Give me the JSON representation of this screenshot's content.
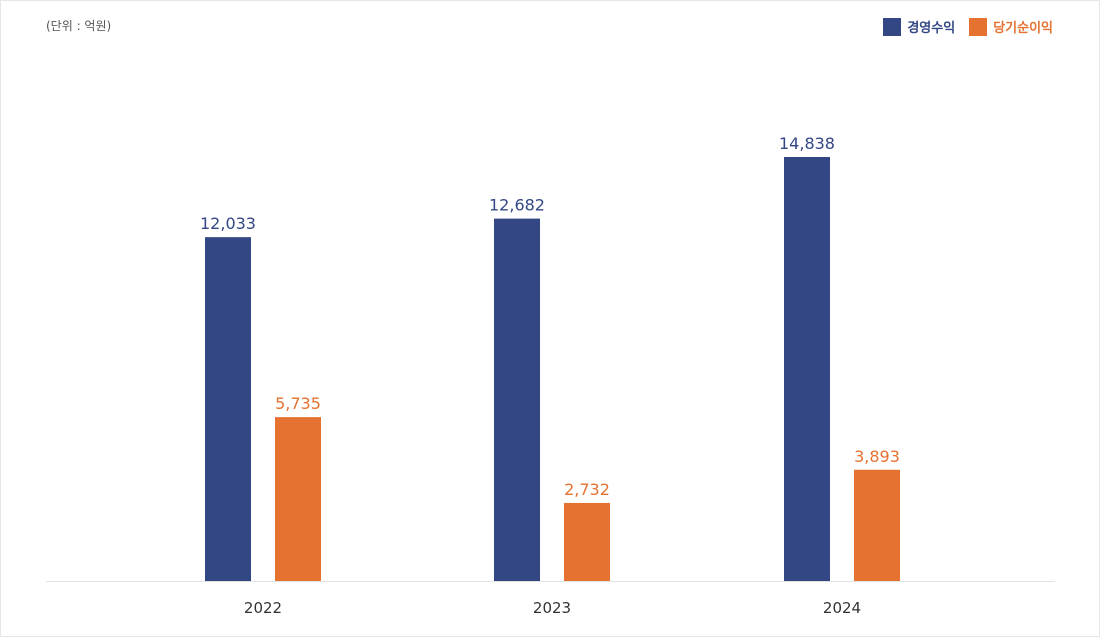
{
  "unit_label": "(단위 : 억원)",
  "colors": {
    "primary": "#334785",
    "secondary": "#e57231",
    "axis": "#e2e2e2",
    "tick": "#333333"
  },
  "chart_data": {
    "type": "bar",
    "categories": [
      "2022",
      "2023",
      "2024"
    ],
    "series": [
      {
        "name": "경영수익",
        "values": [
          12033,
          12682,
          14838
        ],
        "labels": [
          "12,033",
          "12,682",
          "14,838"
        ]
      },
      {
        "name": "당기순이익",
        "values": [
          5735,
          2732,
          3893
        ],
        "labels": [
          "5,735",
          "2,732",
          "3,893"
        ]
      }
    ],
    "title": "",
    "xlabel": "",
    "ylabel": "",
    "legend": "top-right",
    "grid": false
  }
}
